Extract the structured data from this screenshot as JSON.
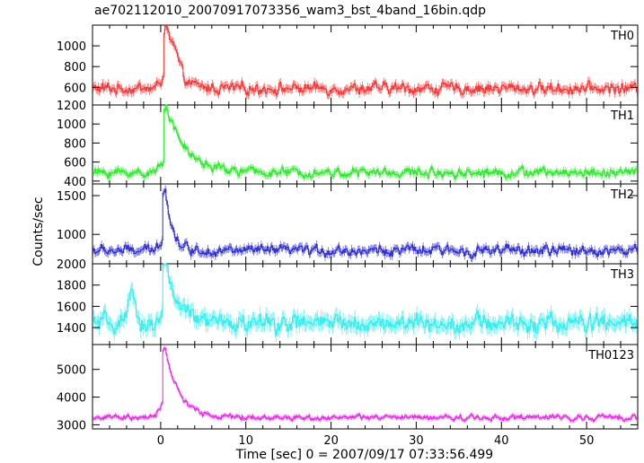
{
  "chart_data": {
    "type": "line",
    "title": "ae702112010_20070917073356_wam3_bst_4band_16bin.qdp",
    "xlabel": "Time [sec] 0 = 2007/09/17 07:33:56.499",
    "ylabel": "Counts/sec",
    "xlim": [
      -8,
      56
    ],
    "x_ticks": [
      0,
      10,
      20,
      30,
      40,
      50
    ],
    "x_tick_labels": [
      "0",
      "10",
      "20",
      "30",
      "40",
      "50"
    ],
    "grid": false,
    "panels": [
      {
        "name": "TH0",
        "color": "#ff3030",
        "ylim": [
          430,
          1200
        ],
        "y_ticks": [
          600,
          800,
          1000
        ],
        "y_tick_labels": [
          "600",
          "800",
          "1000"
        ],
        "baseline": 590,
        "noise": 45,
        "error": 40,
        "peak": 1150,
        "peak_time": 0.6,
        "decay": 1.1,
        "bump": {
          "amp": 150,
          "time": 1.6,
          "width": 0.8
        }
      },
      {
        "name": "TH1",
        "color": "#22ee22",
        "ylim": [
          370,
          1200
        ],
        "y_ticks": [
          400,
          600,
          800,
          1000,
          1200
        ],
        "y_tick_labels": [
          "400",
          "600",
          "800",
          "1000",
          "1200"
        ],
        "baseline": 490,
        "noise": 40,
        "error": 35,
        "peak": 1200,
        "peak_time": 0.6,
        "decay": 2.2,
        "bump": {
          "amp": 0,
          "time": 0,
          "width": 1
        }
      },
      {
        "name": "TH2",
        "color": "#2a2ad8",
        "ylim": [
          620,
          1650
        ],
        "y_ticks": [
          1000,
          1500
        ],
        "y_tick_labels": [
          "1000",
          "1500"
        ],
        "baseline": 790,
        "noise": 55,
        "error": 50,
        "peak": 1600,
        "peak_time": 0.5,
        "decay": 0.8,
        "bump": {
          "amp": 0,
          "time": 0,
          "width": 1
        }
      },
      {
        "name": "TH3",
        "color": "#33eeee",
        "ylim": [
          1240,
          2000
        ],
        "y_ticks": [
          1400,
          1600,
          1800,
          2000
        ],
        "y_tick_labels": [
          "1400",
          "1600",
          "1800",
          "2000"
        ],
        "baseline": 1440,
        "noise": 70,
        "error": 65,
        "peak": 2000,
        "peak_time": 0.5,
        "decay": 1.4,
        "bump": {
          "amp": 250,
          "time": -3.5,
          "width": 0.5
        }
      },
      {
        "name": "TH0123",
        "color": "#ee22ee",
        "ylim": [
          2850,
          5900
        ],
        "y_ticks": [
          3000,
          4000,
          5000
        ],
        "y_tick_labels": [
          "3000",
          "4000",
          "5000"
        ],
        "baseline": 3260,
        "noise": 80,
        "error": 75,
        "peak": 5750,
        "peak_time": 0.5,
        "decay": 1.6,
        "bump": {
          "amp": 0,
          "time": 0,
          "width": 1
        }
      }
    ]
  }
}
